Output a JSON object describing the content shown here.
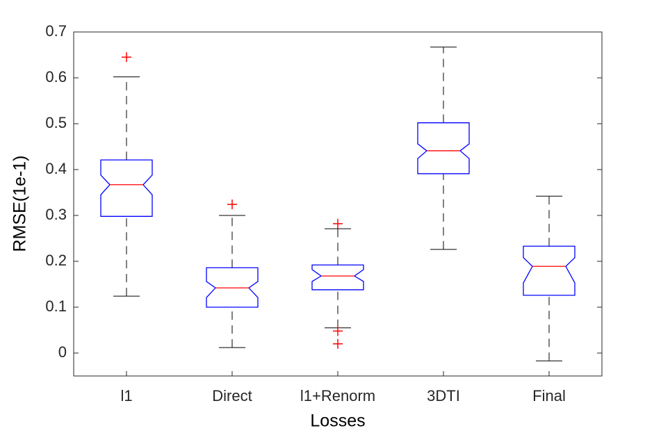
{
  "chart_data": {
    "type": "box",
    "x_label": "Losses",
    "y_label": "RMSE(1e-1)",
    "categories": [
      "l1",
      "Direct",
      "l1+Renorm",
      "3DTI",
      "Final"
    ],
    "boxes": [
      {
        "whisker_low": 0.124,
        "q1": 0.298,
        "notch_low": 0.345,
        "median": 0.367,
        "notch_high": 0.388,
        "q3": 0.421,
        "whisker_high": 0.602,
        "outliers": [
          0.645
        ]
      },
      {
        "whisker_low": 0.012,
        "q1": 0.1,
        "notch_low": 0.121,
        "median": 0.142,
        "notch_high": 0.156,
        "q3": 0.186,
        "whisker_high": 0.3,
        "outliers": [
          0.324
        ]
      },
      {
        "whisker_low": 0.055,
        "q1": 0.138,
        "notch_low": 0.156,
        "median": 0.168,
        "notch_high": 0.182,
        "q3": 0.192,
        "whisker_high": 0.271,
        "outliers": [
          0.282,
          0.048,
          0.02
        ]
      },
      {
        "whisker_low": 0.226,
        "q1": 0.391,
        "notch_low": 0.424,
        "median": 0.441,
        "notch_high": 0.456,
        "q3": 0.502,
        "whisker_high": 0.667,
        "outliers": []
      },
      {
        "whisker_low": -0.017,
        "q1": 0.126,
        "notch_low": 0.153,
        "median": 0.189,
        "notch_high": 0.208,
        "q3": 0.233,
        "whisker_high": 0.342,
        "outliers": []
      }
    ],
    "box_color": "#0000ff",
    "median_color": "#ff0000",
    "whisker_color": "#000000",
    "outlier_color": "#ff0000",
    "ylim": [
      -0.05,
      0.7
    ],
    "yticks": [
      0,
      0.1,
      0.2,
      0.3,
      0.4,
      0.5,
      0.6,
      0.7
    ]
  }
}
